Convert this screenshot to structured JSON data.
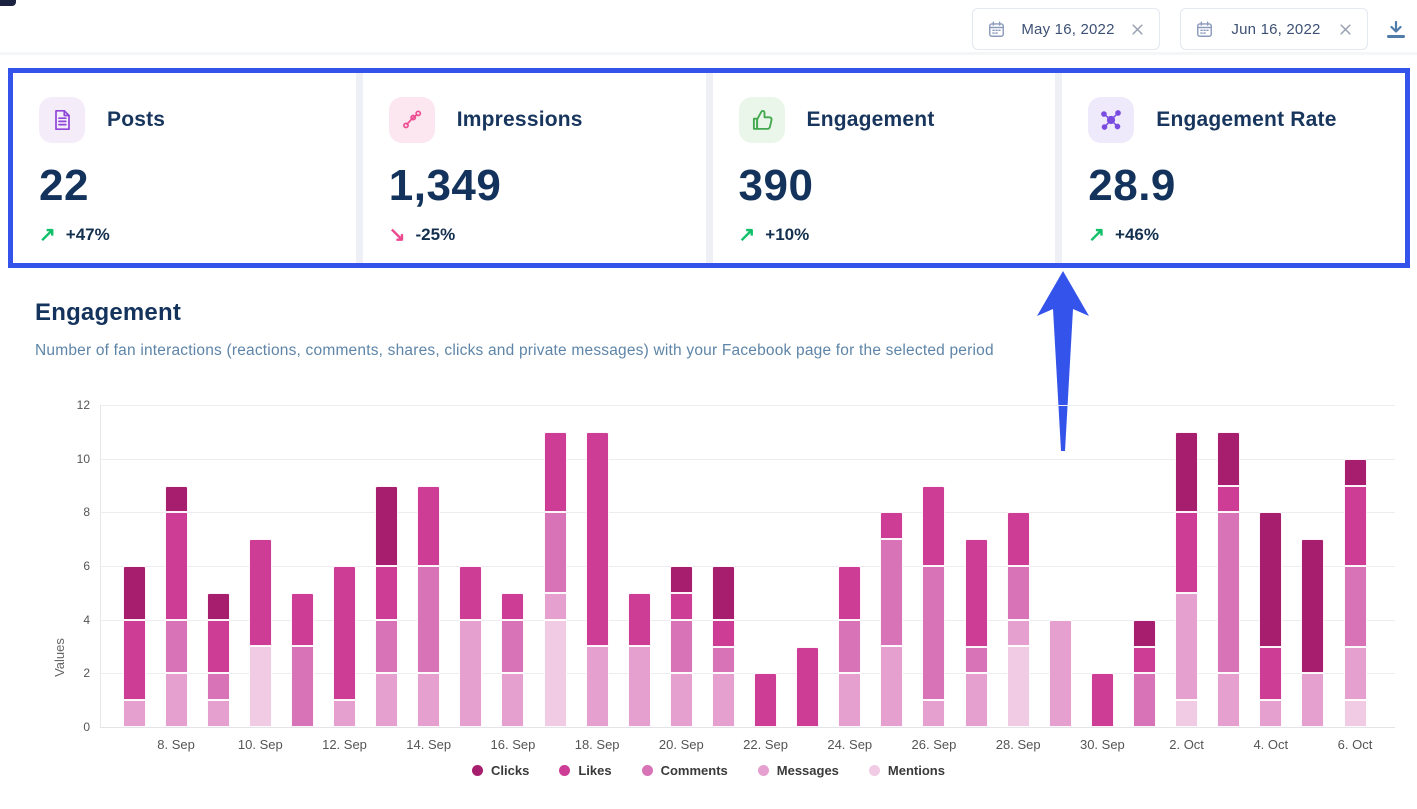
{
  "header": {
    "date_from": "May 16, 2022",
    "date_to": "Jun 16, 2022"
  },
  "kpi_cards": [
    {
      "label": "Posts",
      "value": "22",
      "delta": "+47%",
      "trend": "up",
      "icon": "document-icon",
      "accent": "#8f46d8",
      "badge_bg": "#f5ecfa"
    },
    {
      "label": "Impressions",
      "value": "1,349",
      "delta": "-25%",
      "trend": "down",
      "icon": "share-icon",
      "accent": "#ee4d92",
      "badge_bg": "#fce7f1"
    },
    {
      "label": "Engagement",
      "value": "390",
      "delta": "+10%",
      "trend": "up",
      "icon": "thumbs-up-icon",
      "accent": "#42a94e",
      "badge_bg": "#ebf6ea"
    },
    {
      "label": "Engagement Rate",
      "value": "28.9",
      "delta": "+46%",
      "trend": "up",
      "icon": "network-icon",
      "accent": "#7a4be0",
      "badge_bg": "#efeafb"
    }
  ],
  "section": {
    "title": "Engagement",
    "subtitle": "Number of fan interactions (reactions, comments, shares, clicks and private messages) with your Facebook page for the selected period"
  },
  "chart_data": {
    "type": "bar",
    "stacked": true,
    "ylabel": "Values",
    "ylim": [
      0,
      12
    ],
    "yticks": [
      0,
      2,
      4,
      6,
      8,
      10,
      12
    ],
    "grid": true,
    "legend_position": "bottom",
    "categories": [
      "7. Sep",
      "8. Sep",
      "9. Sep",
      "10. Sep",
      "11. Sep",
      "12. Sep",
      "13. Sep",
      "14. Sep",
      "15. Sep",
      "16. Sep",
      "17. Sep",
      "18. Sep",
      "19. Sep",
      "20. Sep",
      "21. Sep",
      "22. Sep",
      "23. Sep",
      "24. Sep",
      "25. Sep",
      "26. Sep",
      "27. Sep",
      "28. Sep",
      "29. Sep",
      "30. Sep",
      "1. Oct",
      "2. Oct",
      "3. Oct",
      "4. Oct",
      "5. Oct",
      "6. Oct"
    ],
    "x_tick_labels": [
      "8. Sep",
      "10. Sep",
      "12. Sep",
      "14. Sep",
      "16. Sep",
      "18. Sep",
      "20. Sep",
      "22. Sep",
      "24. Sep",
      "26. Sep",
      "28. Sep",
      "30. Sep",
      "2. Oct",
      "4. Oct",
      "6. Oct"
    ],
    "series": [
      {
        "name": "Clicks",
        "color": "#a81e6e",
        "values": [
          2,
          1,
          1,
          0,
          0,
          0,
          3,
          0,
          0,
          0,
          0,
          0,
          0,
          1,
          2,
          0,
          0,
          0,
          0,
          0,
          0,
          0,
          0,
          0,
          1,
          3,
          2,
          5,
          5,
          1
        ]
      },
      {
        "name": "Likes",
        "color": "#cd3c95",
        "values": [
          3,
          4,
          2,
          4,
          2,
          5,
          2,
          3,
          2,
          1,
          3,
          8,
          2,
          1,
          1,
          2,
          3,
          2,
          1,
          3,
          4,
          2,
          0,
          2,
          1,
          3,
          1,
          2,
          0,
          3
        ]
      },
      {
        "name": "Comments",
        "color": "#d873b7",
        "values": [
          0,
          2,
          1,
          0,
          3,
          0,
          2,
          4,
          0,
          2,
          3,
          0,
          0,
          2,
          1,
          0,
          0,
          2,
          4,
          5,
          1,
          2,
          0,
          0,
          2,
          0,
          6,
          0,
          0,
          3
        ]
      },
      {
        "name": "Messages",
        "color": "#e6a0d0",
        "values": [
          1,
          2,
          1,
          0,
          0,
          1,
          2,
          2,
          4,
          2,
          1,
          3,
          3,
          2,
          2,
          0,
          0,
          2,
          3,
          1,
          2,
          1,
          4,
          0,
          0,
          4,
          2,
          1,
          2,
          2
        ]
      },
      {
        "name": "Mentions",
        "color": "#f1cbe3",
        "values": [
          0,
          0,
          0,
          3,
          0,
          0,
          0,
          0,
          0,
          0,
          4,
          0,
          0,
          0,
          0,
          0,
          0,
          0,
          0,
          0,
          0,
          3,
          0,
          0,
          0,
          1,
          0,
          0,
          0,
          1
        ]
      }
    ]
  },
  "annotation": {
    "arrow_color": "#3453ea",
    "highlight_border_color": "#3453ea"
  }
}
